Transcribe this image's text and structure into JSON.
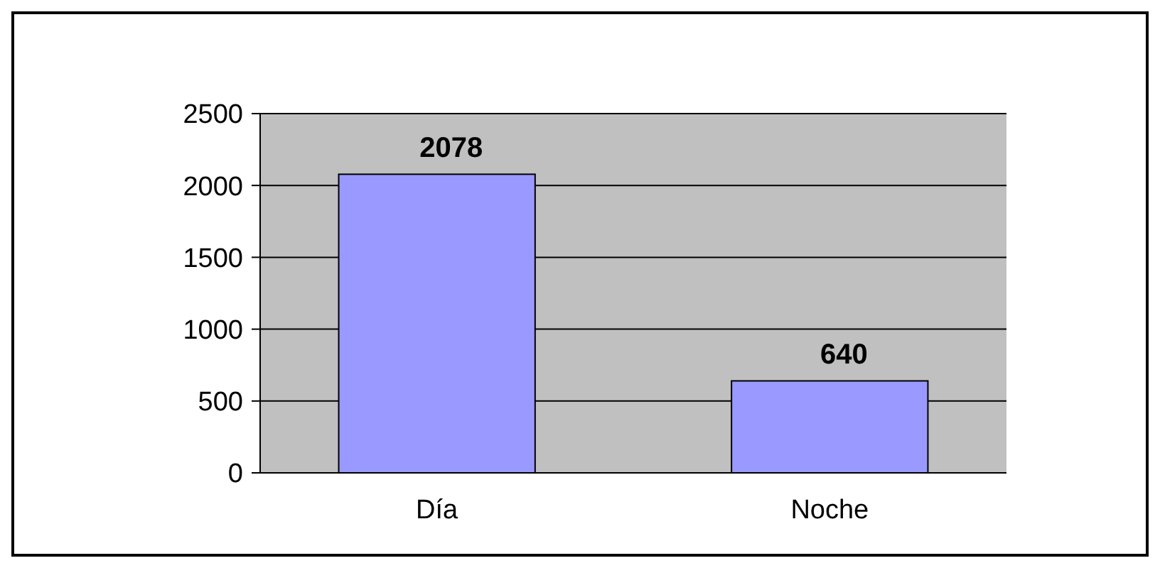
{
  "chart_data": {
    "type": "bar",
    "categories": [
      "Día",
      "Noche"
    ],
    "values": [
      2078,
      640
    ],
    "color": "#9999ff",
    "ylim": [
      0,
      2500
    ],
    "yticks": [
      0,
      500,
      1000,
      1500,
      2000,
      2500
    ],
    "grid": "y",
    "data_labels": true
  }
}
